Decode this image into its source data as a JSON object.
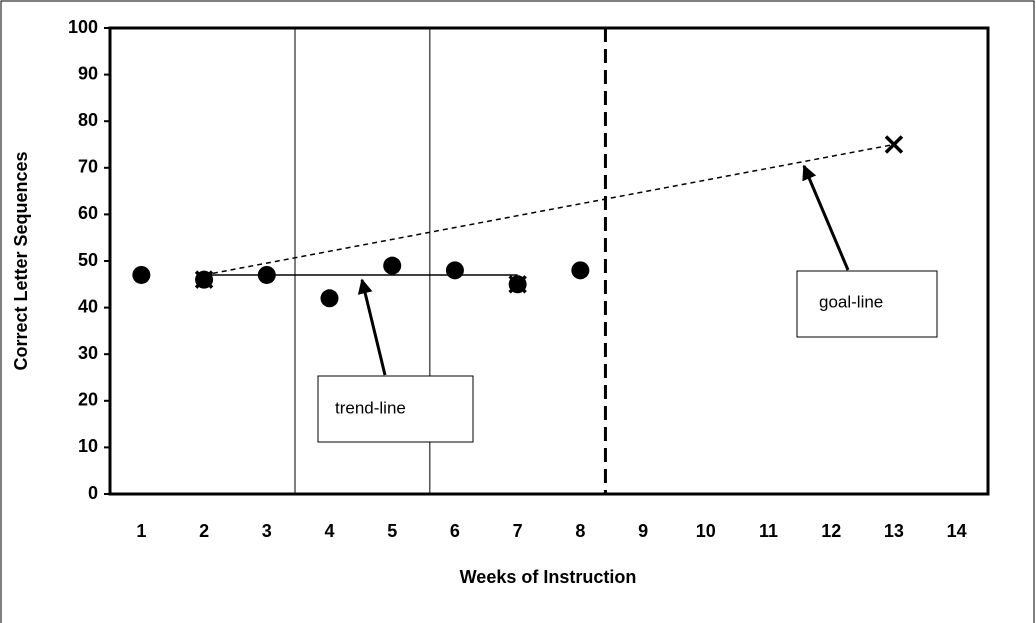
{
  "chart_data": {
    "type": "scatter",
    "x_label": "Weeks of Instruction",
    "y_label": "Correct Letter Sequences",
    "x": [
      1,
      2,
      3,
      4,
      5,
      6,
      7,
      8
    ],
    "values": [
      47,
      46,
      47,
      42,
      49,
      48,
      45,
      48
    ],
    "color": "#000000",
    "xlim": [
      0.5,
      14.5
    ],
    "xticks": [
      1,
      2,
      3,
      4,
      5,
      6,
      7,
      8,
      9,
      10,
      11,
      12,
      13,
      14
    ],
    "ylim": [
      0,
      100
    ],
    "yticks": [
      0,
      10,
      20,
      30,
      40,
      50,
      60,
      70,
      80,
      90,
      100
    ],
    "x_markers": {
      "x": [
        2,
        7,
        13
      ],
      "values": [
        46,
        45,
        75
      ]
    },
    "trend_line": {
      "x": [
        2,
        7
      ],
      "values": [
        47,
        47
      ]
    },
    "goal_line": {
      "x": [
        2,
        13
      ],
      "values": [
        47,
        75
      ]
    },
    "phase_lines": [
      3.45,
      5.6
    ],
    "phase_change_line": 8.4,
    "annotations": [
      {
        "text": "trend-line"
      },
      {
        "text": "goal-line"
      }
    ]
  }
}
